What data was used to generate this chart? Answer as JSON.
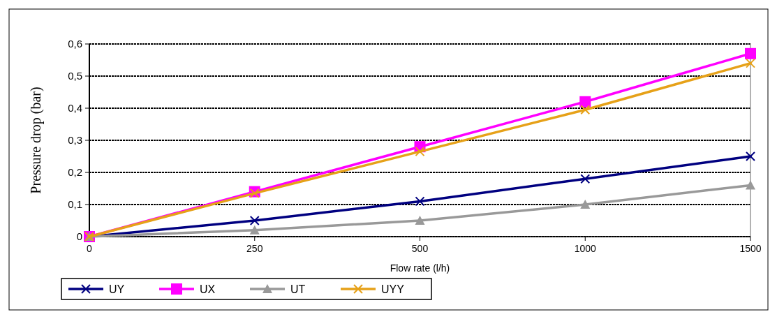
{
  "chart_data": {
    "type": "line",
    "xlabel": "Flow rate (l/h)",
    "ylabel": "Pressure drop (bar)",
    "categories": [
      "0",
      "250",
      "500",
      "1000",
      "1500"
    ],
    "ylim": [
      0,
      0.6
    ],
    "yticks": [
      {
        "value": 0,
        "label": "0"
      },
      {
        "value": 0.1,
        "label": "0,1"
      },
      {
        "value": 0.2,
        "label": "0,2"
      },
      {
        "value": 0.3,
        "label": "0,3"
      },
      {
        "value": 0.4,
        "label": "0,4"
      },
      {
        "value": 0.5,
        "label": "0,5"
      },
      {
        "value": 0.6,
        "label": "0,6"
      }
    ],
    "grid": "y",
    "legend": "bottom",
    "series": [
      {
        "name": "UY",
        "color": "#000080",
        "marker": "cross",
        "values": [
          0,
          0.05,
          0.11,
          0.18,
          0.25
        ]
      },
      {
        "name": "UX",
        "color": "#ff00ff",
        "marker": "square",
        "values": [
          0,
          0.14,
          0.28,
          0.42,
          0.57
        ]
      },
      {
        "name": "UT",
        "color": "#999999",
        "marker": "triangle",
        "values": [
          0,
          0.02,
          0.05,
          0.1,
          0.16
        ]
      },
      {
        "name": "UYY",
        "color": "#e6a118",
        "marker": "cross",
        "values": [
          0,
          0.135,
          0.265,
          0.395,
          0.54
        ]
      }
    ]
  }
}
